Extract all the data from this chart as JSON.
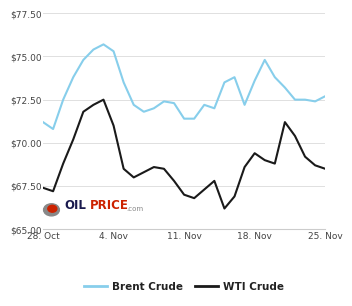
{
  "brent_x": [
    0,
    1,
    2,
    3,
    4,
    5,
    6,
    7,
    8,
    9,
    10,
    11,
    12,
    13,
    14,
    15,
    16,
    17,
    18,
    19,
    20,
    21,
    22,
    23,
    24,
    25,
    26,
    27,
    28
  ],
  "brent_y": [
    71.2,
    70.8,
    72.5,
    73.8,
    74.8,
    75.4,
    75.7,
    75.3,
    73.5,
    72.2,
    71.8,
    72.0,
    72.4,
    72.3,
    71.4,
    71.4,
    72.2,
    72.0,
    73.5,
    73.8,
    72.2,
    73.6,
    74.8,
    73.8,
    73.2,
    72.5,
    72.5,
    72.4,
    72.7
  ],
  "wti_x": [
    0,
    1,
    2,
    3,
    4,
    5,
    6,
    7,
    8,
    9,
    10,
    11,
    12,
    13,
    14,
    15,
    16,
    17,
    18,
    19,
    20,
    21,
    22,
    23,
    24,
    25,
    26,
    27,
    28
  ],
  "wti_y": [
    67.4,
    67.2,
    68.8,
    70.2,
    71.8,
    72.2,
    72.5,
    71.0,
    68.5,
    68.0,
    68.3,
    68.6,
    68.5,
    67.8,
    67.0,
    66.8,
    67.3,
    67.8,
    66.2,
    66.9,
    68.6,
    69.4,
    69.0,
    68.8,
    71.2,
    70.4,
    69.2,
    68.7,
    68.5
  ],
  "brent_color": "#87CEEB",
  "wti_color": "#1a1a1a",
  "ylim": [
    65.0,
    77.5
  ],
  "yticks": [
    65.0,
    67.5,
    70.0,
    72.5,
    75.0,
    77.5
  ],
  "ytick_labels": [
    "$65.00",
    "$67.50",
    "$70.00",
    "$72.50",
    "$75.00",
    "$77.50"
  ],
  "xticks": [
    0,
    7,
    14,
    21,
    28
  ],
  "xtick_labels": [
    "28. Oct",
    "4. Nov",
    "11. Nov",
    "18. Nov",
    "25. Nov"
  ],
  "grid_color": "#e0e0e0",
  "background_color": "#ffffff",
  "legend_brent": "Brent Crude",
  "legend_wti": "WTI Crude",
  "oilprice_dark": "#1a1a4e",
  "oilprice_red": "#cc2200",
  "oilprice_gray": "#999999"
}
